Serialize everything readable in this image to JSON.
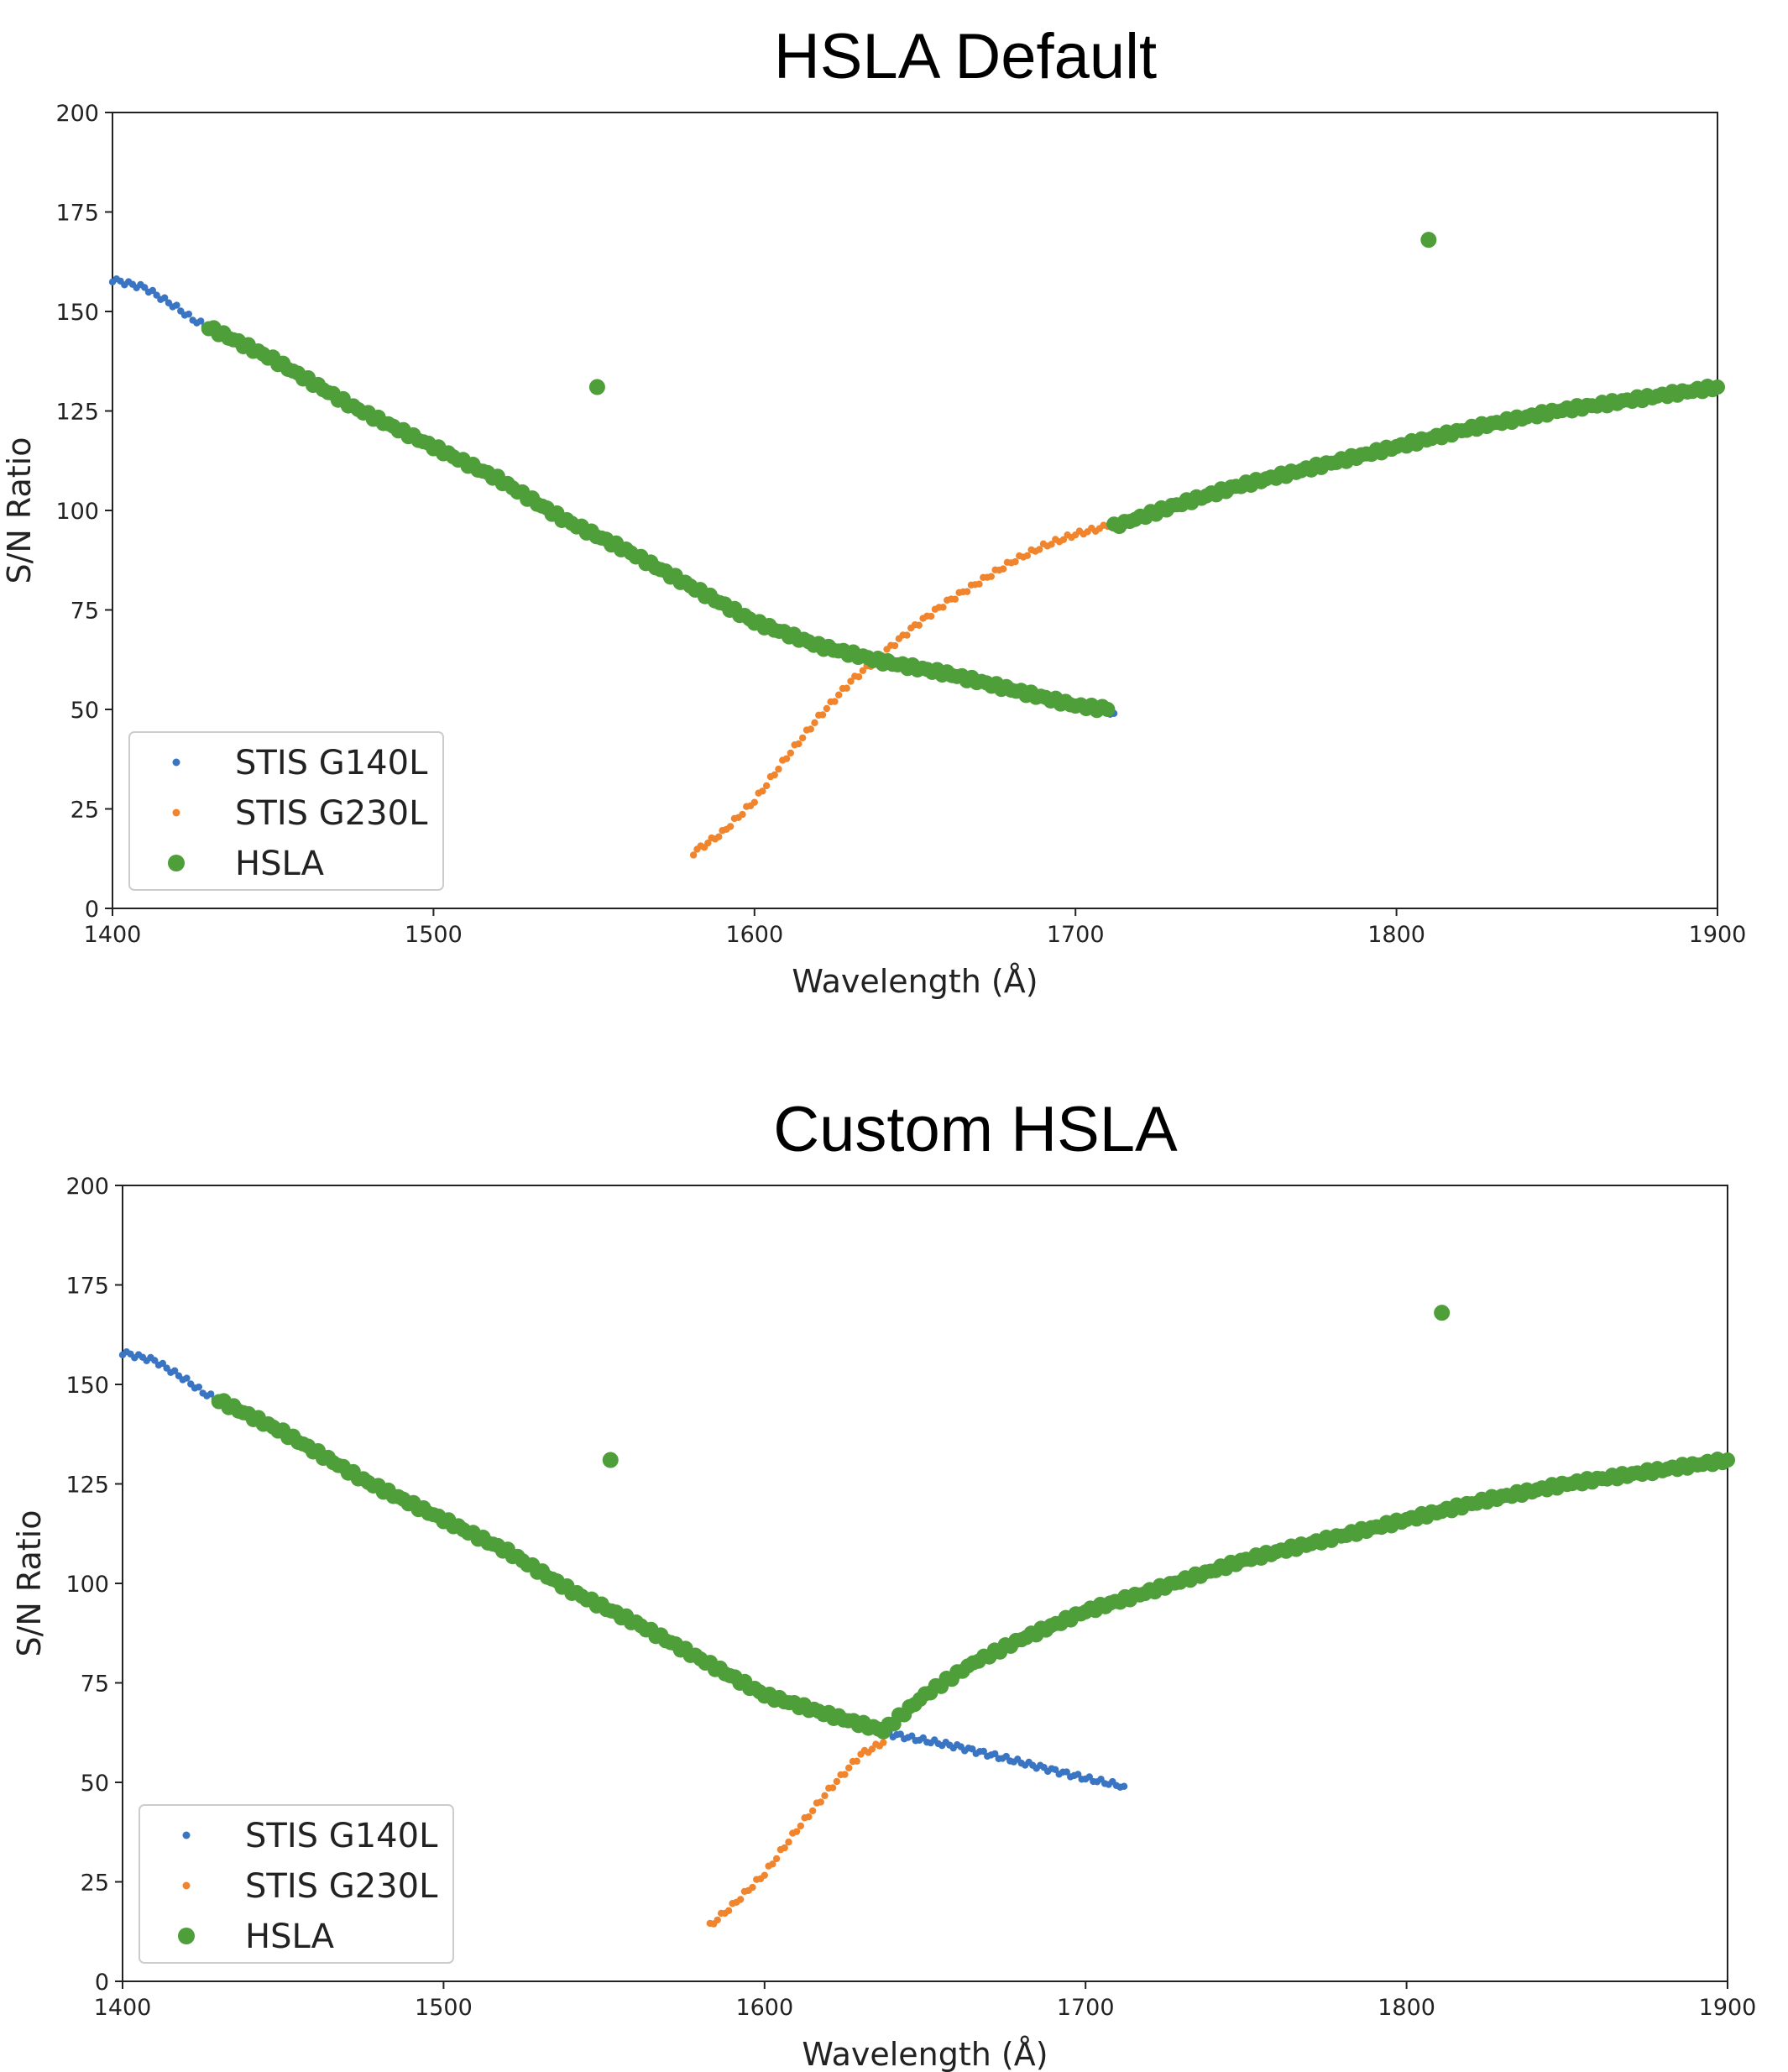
{
  "colors": {
    "g140l": "#3a75c4",
    "g230l": "#f0852d",
    "hsla": "#4e9e3a"
  },
  "chart_data": [
    {
      "type": "scatter",
      "title": "HSLA Default",
      "xlabel": "Wavelength (Å)",
      "ylabel": "S/N Ratio",
      "xlim": [
        1400,
        1900
      ],
      "ylim": [
        0,
        200
      ],
      "xticks": [
        1400,
        1500,
        1600,
        1700,
        1800,
        1900
      ],
      "yticks": [
        0,
        25,
        50,
        75,
        100,
        125,
        150,
        175,
        200
      ],
      "grid": false,
      "legend": "lower-left",
      "series": [
        {
          "name": "STIS G140L",
          "key": "g140l",
          "marker": "small",
          "points": [
            [
              1400,
              158
            ],
            [
              1410,
              156
            ],
            [
              1420,
              151
            ],
            [
              1425,
              148
            ],
            [
              1430,
              146
            ],
            [
              1450,
              138
            ],
            [
              1475,
              126
            ],
            [
              1500,
              116
            ],
            [
              1520,
              108
            ],
            [
              1540,
              98
            ],
            [
              1560,
              90
            ],
            [
              1580,
              81
            ],
            [
              1600,
              72
            ],
            [
              1620,
              66
            ],
            [
              1640,
              62
            ],
            [
              1660,
              59
            ],
            [
              1680,
              55
            ],
            [
              1700,
              51
            ],
            [
              1712,
              49
            ]
          ]
        },
        {
          "name": "STIS G230L",
          "key": "g230l",
          "marker": "small",
          "points": [
            [
              1581,
              14
            ],
            [
              1590,
              19
            ],
            [
              1600,
              27
            ],
            [
              1610,
              38
            ],
            [
              1620,
              48
            ],
            [
              1630,
              57
            ],
            [
              1640,
              64
            ],
            [
              1650,
              71
            ],
            [
              1660,
              77
            ],
            [
              1670,
              82
            ],
            [
              1680,
              87
            ],
            [
              1690,
              91
            ],
            [
              1700,
              94
            ],
            [
              1710,
              96
            ]
          ]
        },
        {
          "name": "HSLA",
          "key": "hsla",
          "marker": "large",
          "points": [
            [
              1430,
              146
            ],
            [
              1450,
              138
            ],
            [
              1475,
              126
            ],
            [
              1500,
              116
            ],
            [
              1520,
              108
            ],
            [
              1540,
              98
            ],
            [
              1560,
              90
            ],
            [
              1580,
              81
            ],
            [
              1600,
              72
            ],
            [
              1620,
              66
            ],
            [
              1640,
              62
            ],
            [
              1660,
              59
            ],
            [
              1680,
              55
            ],
            [
              1700,
              51
            ],
            [
              1710,
              50
            ],
            [
              1712,
              96
            ],
            [
              1730,
              101
            ],
            [
              1750,
              106
            ],
            [
              1775,
              111
            ],
            [
              1800,
              116
            ],
            [
              1825,
              121
            ],
            [
              1850,
              125
            ],
            [
              1875,
              128
            ],
            [
              1900,
              131
            ],
            [
              1551,
              131
            ],
            [
              1810,
              168
            ]
          ]
        }
      ]
    },
    {
      "type": "scatter",
      "title": "Custom HSLA",
      "xlabel": "Wavelength (Å)",
      "ylabel": "S/N Ratio",
      "xlim": [
        1400,
        1900
      ],
      "ylim": [
        0,
        200
      ],
      "xticks": [
        1400,
        1500,
        1600,
        1700,
        1800,
        1900
      ],
      "yticks": [
        0,
        25,
        50,
        75,
        100,
        125,
        150,
        175,
        200
      ],
      "grid": false,
      "legend": "lower-left",
      "series": [
        {
          "name": "STIS G140L",
          "key": "g140l",
          "marker": "small",
          "points": [
            [
              1400,
              158
            ],
            [
              1410,
              156
            ],
            [
              1420,
              151
            ],
            [
              1425,
              148
            ],
            [
              1430,
              146
            ],
            [
              1450,
              138
            ],
            [
              1475,
              126
            ],
            [
              1500,
              116
            ],
            [
              1520,
              108
            ],
            [
              1540,
              98
            ],
            [
              1560,
              90
            ],
            [
              1580,
              81
            ],
            [
              1600,
              72
            ],
            [
              1620,
              66
            ],
            [
              1640,
              62
            ],
            [
              1660,
              59
            ],
            [
              1680,
              55
            ],
            [
              1700,
              51
            ],
            [
              1712,
              49
            ]
          ]
        },
        {
          "name": "STIS G230L",
          "key": "g230l",
          "marker": "small",
          "points": [
            [
              1583,
              14
            ],
            [
              1590,
              19
            ],
            [
              1600,
              27
            ],
            [
              1610,
              38
            ],
            [
              1620,
              48
            ],
            [
              1630,
              57
            ],
            [
              1637,
              60
            ]
          ]
        },
        {
          "name": "HSLA",
          "key": "hsla",
          "marker": "large",
          "points": [
            [
              1430,
              146
            ],
            [
              1450,
              138
            ],
            [
              1475,
              126
            ],
            [
              1500,
              116
            ],
            [
              1520,
              108
            ],
            [
              1540,
              98
            ],
            [
              1560,
              90
            ],
            [
              1580,
              81
            ],
            [
              1600,
              72
            ],
            [
              1620,
              67
            ],
            [
              1637,
              63
            ],
            [
              1650,
              72
            ],
            [
              1665,
              80
            ],
            [
              1680,
              86
            ],
            [
              1700,
              93
            ],
            [
              1720,
              98
            ],
            [
              1750,
              106
            ],
            [
              1775,
              111
            ],
            [
              1800,
              116
            ],
            [
              1825,
              121
            ],
            [
              1850,
              125
            ],
            [
              1875,
              128
            ],
            [
              1900,
              131
            ],
            [
              1552,
              131
            ],
            [
              1811,
              168
            ]
          ]
        }
      ]
    }
  ]
}
